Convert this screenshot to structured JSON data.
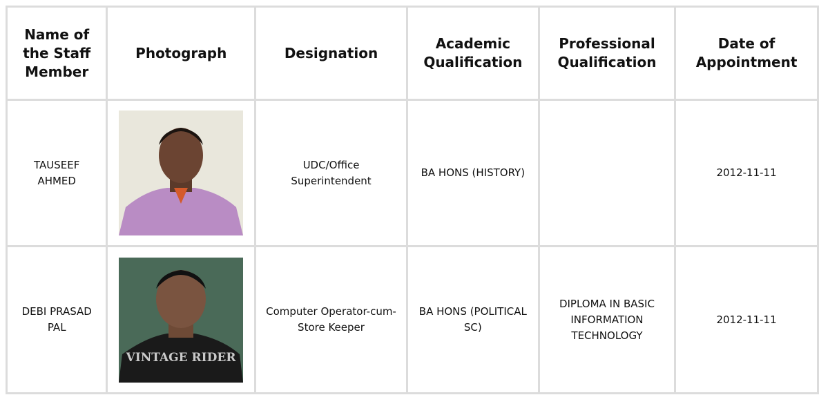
{
  "table": {
    "headers": [
      "Name of the Staff Member",
      "Photograph",
      "Designation",
      "Academic Qualification",
      "Professional Qualification",
      "Date of Appointment"
    ],
    "rows": [
      {
        "name": "TAUSEEF AHMED",
        "designation": "UDC/Office Superintendent",
        "academic": "BA HONS (HISTORY)",
        "date": "2012-11-11"
      },
      {
        "name": "DEBI PRASAD PAL",
        "photo_text": "VINTAGE RIDER",
        "designation": "Computer Operator-cum-Store Keeper",
        "academic": "BA HONS (POLITICAL SC)",
        "professional": "DIPLOMA IN BASIC INFORMATION TECHNOLOGY",
        "date": "2012-11-11"
      }
    ]
  }
}
